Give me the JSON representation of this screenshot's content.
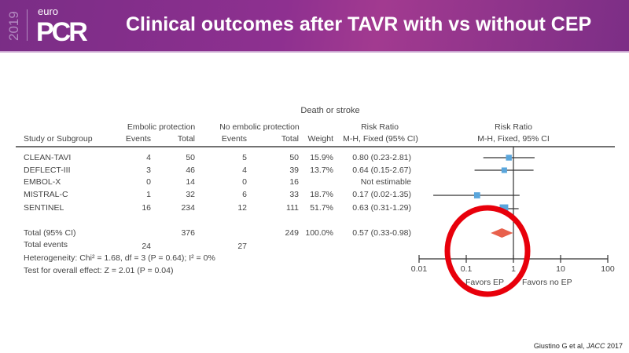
{
  "header": {
    "year": "2019",
    "brand_small": "euro",
    "brand": "PCR",
    "title": "Clinical outcomes after TAVR with vs without CEP"
  },
  "table": {
    "outcome": "Death or stroke",
    "group1": "Embolic protection",
    "group2": "No embolic protection",
    "columns": {
      "study": "Study or Subgroup",
      "events1": "Events",
      "total1": "Total",
      "events2": "Events",
      "total2": "Total",
      "weight": "Weight",
      "rr_title": "Risk Ratio",
      "rr_sub": "M-H, Fixed (95% CI)",
      "plot_title": "Risk Ratio",
      "plot_sub": "M-H, Fixed, 95% CI"
    },
    "rows": [
      {
        "study": "CLEAN-TAVI",
        "e1": "4",
        "t1": "50",
        "e2": "5",
        "t2": "50",
        "weight": "15.9%",
        "rr": "0.80 (0.23-2.81)"
      },
      {
        "study": "DEFLECT-III",
        "e1": "3",
        "t1": "46",
        "e2": "4",
        "t2": "39",
        "weight": "13.7%",
        "rr": "0.64 (0.15-2.67)"
      },
      {
        "study": "EMBOL-X",
        "e1": "0",
        "t1": "14",
        "e2": "0",
        "t2": "16",
        "weight": "",
        "rr": "Not estimable"
      },
      {
        "study": "MISTRAL-C",
        "e1": "1",
        "t1": "32",
        "e2": "6",
        "t2": "33",
        "weight": "18.7%",
        "rr": "0.17 (0.02-1.35)"
      },
      {
        "study": "SENTINEL",
        "e1": "16",
        "t1": "234",
        "e2": "12",
        "t2": "111",
        "weight": "51.7%",
        "rr": "0.63 (0.31-1.29)"
      }
    ],
    "total": {
      "label": "Total (95% CI)",
      "t1": "376",
      "t2": "249",
      "weight": "100.0%",
      "rr": "0.57 (0.33-0.98)"
    },
    "total_events": {
      "label": "Total events",
      "e1": "24",
      "e2": "27"
    },
    "heterogeneity": "Heterogeneity: Chi² = 1.68, df = 3 (P = 0.64); I² = 0%",
    "overall": "Test for overall effect: Z = 2.01 (P = 0.04)"
  },
  "chart_data": {
    "type": "forest",
    "x_scale": "log",
    "xlim": [
      0.01,
      100
    ],
    "x_ticks": [
      "0.01",
      "0.1",
      "1",
      "10",
      "100"
    ],
    "favors_left": "Favors EP",
    "favors_right": "Favors no EP",
    "studies": [
      {
        "name": "CLEAN-TAVI",
        "rr": 0.8,
        "lo": 0.23,
        "hi": 2.81,
        "weight": 15.9
      },
      {
        "name": "DEFLECT-III",
        "rr": 0.64,
        "lo": 0.15,
        "hi": 2.67,
        "weight": 13.7
      },
      {
        "name": "MISTRAL-C",
        "rr": 0.17,
        "lo": 0.02,
        "hi": 1.35,
        "weight": 18.7
      },
      {
        "name": "SENTINEL",
        "rr": 0.63,
        "lo": 0.31,
        "hi": 1.29,
        "weight": 51.7
      }
    ],
    "pooled": {
      "rr": 0.57,
      "lo": 0.33,
      "hi": 0.98
    },
    "colors": {
      "square": "#5aa6dc",
      "diamond": "#e8604c",
      "annotation_circle": "#e8000b"
    }
  },
  "citation": {
    "authors": "Giustino G et al, ",
    "journal": "JACC",
    "year": " 2017"
  }
}
